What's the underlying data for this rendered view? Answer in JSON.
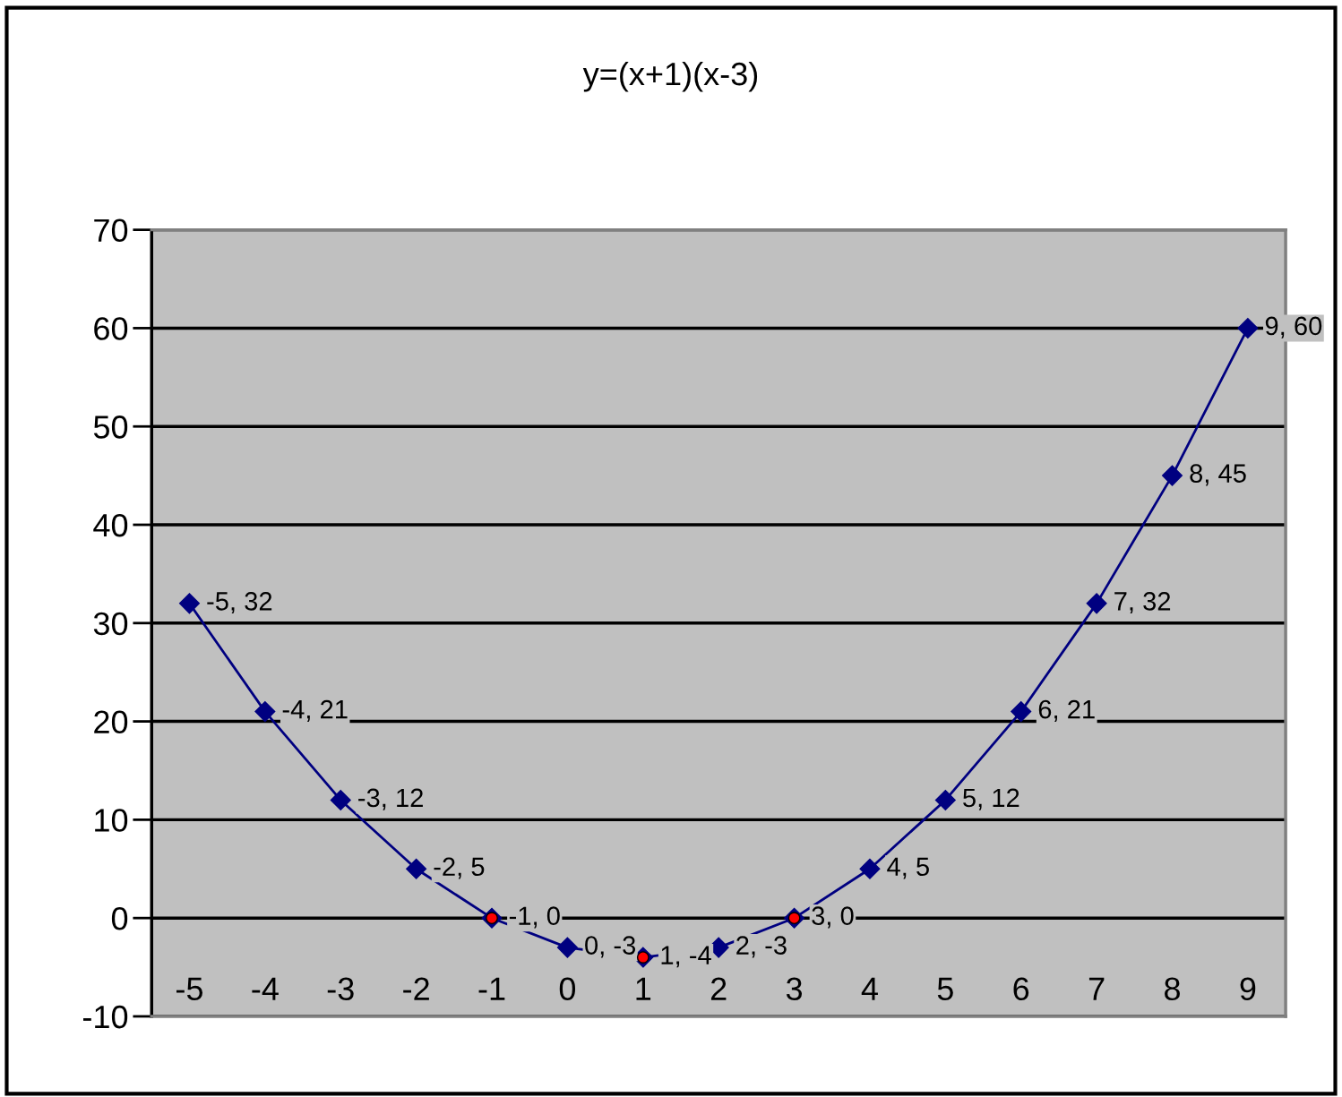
{
  "chart_data": {
    "type": "line",
    "title": "y=(x+1)(x-3)",
    "categories": [
      "-5",
      "-4",
      "-3",
      "-2",
      "-1",
      "0",
      "1",
      "2",
      "3",
      "4",
      "5",
      "6",
      "7",
      "8",
      "9"
    ],
    "series": [
      {
        "color": "#000080",
        "marker": "diamond",
        "line_style": "solid",
        "values": [
          32,
          21,
          12,
          5,
          0,
          -3,
          -4,
          -3,
          0,
          5,
          12,
          21,
          32,
          45,
          60
        ],
        "value_labels": [
          "-5, 32",
          "-4, 21",
          "-3, 12",
          "-2, 5",
          "-1, 0",
          "0, -3",
          "1, -4",
          "2, -3",
          "3, 0",
          "4, 5",
          "5, 12",
          "6, 21",
          "7, 32",
          "8, 45",
          "9, 60"
        ]
      },
      {
        "type": "scatter",
        "color": "#ff0000",
        "marker": "circle",
        "x": [
          "-1",
          "1",
          "3"
        ],
        "values": [
          0,
          -4,
          0
        ]
      }
    ],
    "ylim": [
      -10,
      70
    ],
    "yticks": [
      -10,
      0,
      10,
      20,
      30,
      40,
      50,
      60,
      70
    ],
    "grid": "y",
    "legend": false
  }
}
